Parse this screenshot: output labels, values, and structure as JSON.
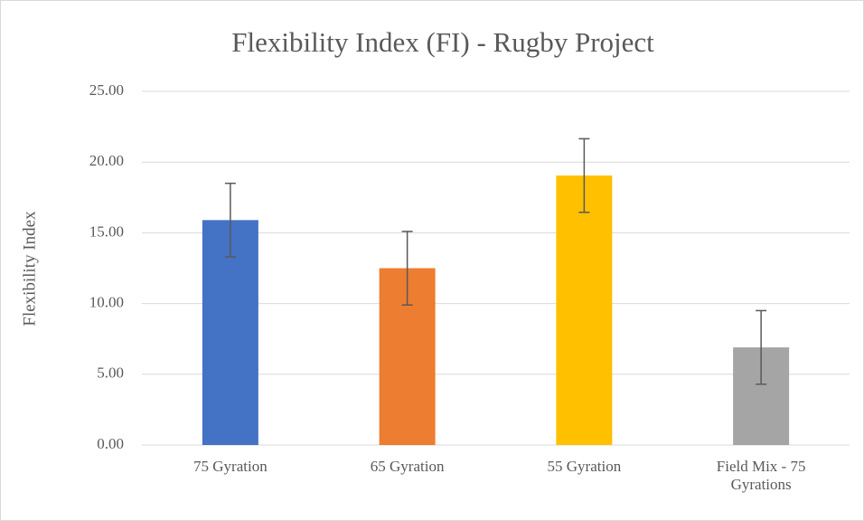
{
  "chart_data": {
    "type": "bar",
    "title": "Flexibility Index (FI) - Rugby Project",
    "y_label": "Flexibility Index",
    "categories": [
      "75 Gyration",
      "65 Gyration",
      "55 Gyration",
      "Field Mix - 75 Gyrations"
    ],
    "values": [
      15.9,
      12.5,
      19.05,
      6.9
    ],
    "errors": [
      2.6,
      2.6,
      2.6,
      2.6
    ],
    "colors": [
      "#4472c4",
      "#ed7d31",
      "#ffc000",
      "#a5a5a5"
    ],
    "ylim": [
      0,
      25
    ],
    "yticks": [
      {
        "value": 0,
        "label": "0.00"
      },
      {
        "value": 5,
        "label": "5.00"
      },
      {
        "value": 10,
        "label": "10.00"
      },
      {
        "value": 15,
        "label": "15.00"
      },
      {
        "value": 20,
        "label": "20.00"
      },
      {
        "value": 25,
        "label": "25.00"
      }
    ],
    "grid": true
  }
}
